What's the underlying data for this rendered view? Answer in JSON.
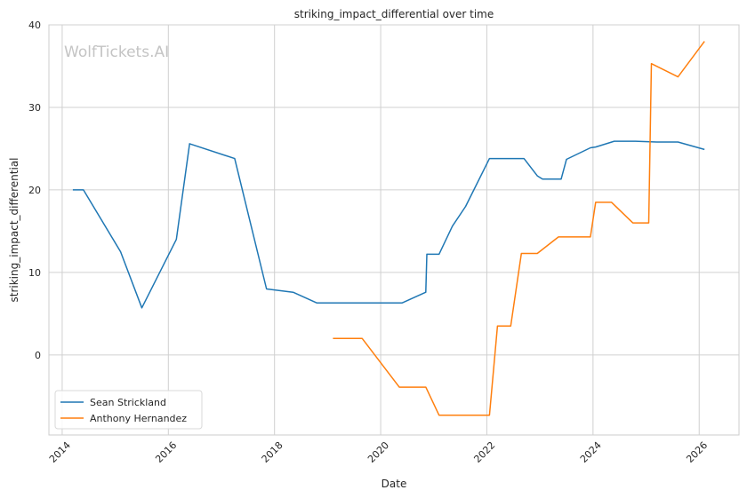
{
  "chart_data": {
    "type": "line",
    "title": "striking_impact_differential over time",
    "xlabel": "Date",
    "ylabel": "striking_impact_differential",
    "watermark": "WolfTickets.AI",
    "x_ticks": [
      "2014",
      "2016",
      "2018",
      "2020",
      "2022",
      "2024",
      "2026"
    ],
    "y_ticks": [
      "0",
      "10",
      "20",
      "30",
      "40"
    ],
    "xlim": [
      2013.75,
      2026.75
    ],
    "ylim": [
      -9.7,
      40
    ],
    "grid": true,
    "legend_position": "lower-left",
    "series": [
      {
        "name": "Sean Strickland",
        "color": "#1f77b4",
        "points": [
          [
            2014.2,
            20.0
          ],
          [
            2014.4,
            20.0
          ],
          [
            2015.1,
            12.5
          ],
          [
            2015.5,
            5.7
          ],
          [
            2016.15,
            14.0
          ],
          [
            2016.4,
            25.6
          ],
          [
            2017.25,
            23.8
          ],
          [
            2017.85,
            8.0
          ],
          [
            2018.35,
            7.6
          ],
          [
            2018.8,
            6.3
          ],
          [
            2019.3,
            6.3
          ],
          [
            2019.9,
            6.3
          ],
          [
            2020.4,
            6.3
          ],
          [
            2020.85,
            7.6
          ],
          [
            2020.87,
            12.2
          ],
          [
            2021.1,
            12.2
          ],
          [
            2021.35,
            15.6
          ],
          [
            2021.6,
            18.0
          ],
          [
            2022.05,
            23.8
          ],
          [
            2022.7,
            23.8
          ],
          [
            2022.95,
            21.7
          ],
          [
            2023.05,
            21.3
          ],
          [
            2023.4,
            21.3
          ],
          [
            2023.5,
            23.7
          ],
          [
            2023.95,
            25.1
          ],
          [
            2024.05,
            25.2
          ],
          [
            2024.4,
            25.9
          ],
          [
            2024.8,
            25.9
          ],
          [
            2025.2,
            25.8
          ],
          [
            2025.6,
            25.8
          ],
          [
            2026.1,
            24.9
          ]
        ]
      },
      {
        "name": "Anthony Hernandez",
        "color": "#ff7f0e",
        "points": [
          [
            2019.1,
            2.0
          ],
          [
            2019.65,
            2.0
          ],
          [
            2020.35,
            -3.9
          ],
          [
            2020.85,
            -3.9
          ],
          [
            2021.1,
            -7.3
          ],
          [
            2022.05,
            -7.3
          ],
          [
            2022.2,
            3.5
          ],
          [
            2022.45,
            3.5
          ],
          [
            2022.65,
            12.3
          ],
          [
            2022.95,
            12.3
          ],
          [
            2023.35,
            14.3
          ],
          [
            2023.95,
            14.3
          ],
          [
            2024.05,
            18.5
          ],
          [
            2024.35,
            18.5
          ],
          [
            2024.75,
            16.0
          ],
          [
            2025.05,
            16.0
          ],
          [
            2025.1,
            35.3
          ],
          [
            2025.6,
            33.7
          ],
          [
            2026.1,
            38.0
          ]
        ]
      }
    ]
  }
}
